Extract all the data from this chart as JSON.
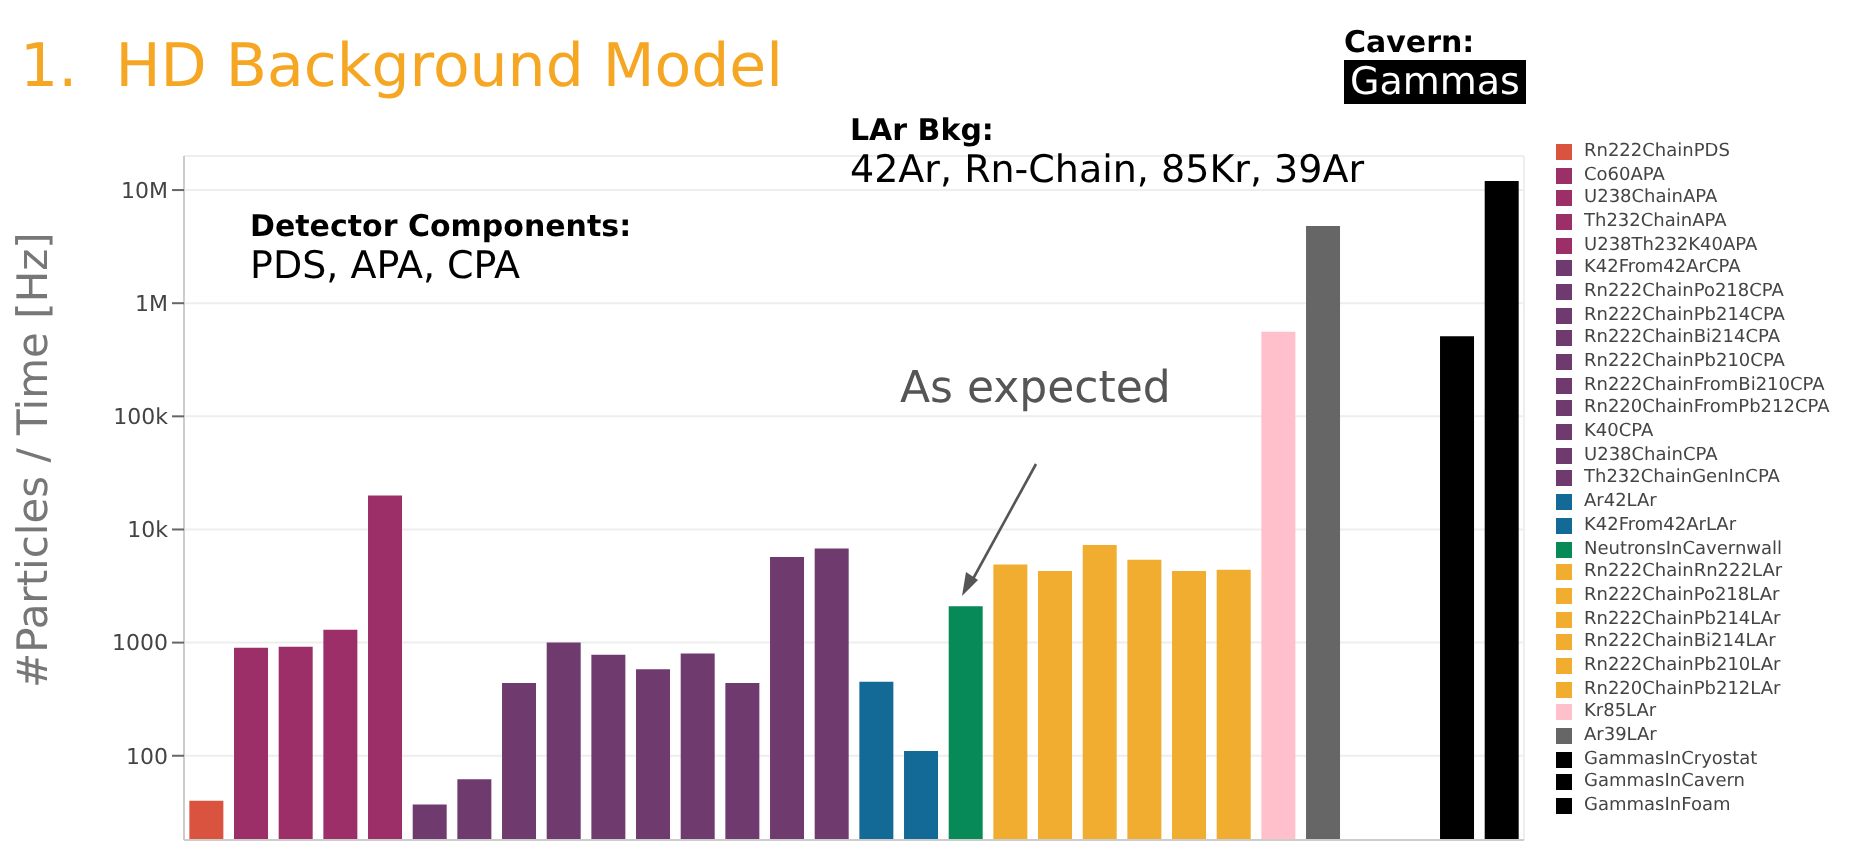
{
  "chart_data": {
    "type": "bar",
    "title": "1.  HD Background Model",
    "ylabel": "#Particles / Time [Hz]",
    "categories": [
      null,
      null,
      null,
      null,
      null,
      null,
      null,
      null,
      null,
      null,
      null,
      null,
      null,
      null,
      null,
      null,
      null,
      null,
      null,
      null,
      null,
      null,
      null,
      null,
      null,
      null,
      null,
      null,
      null,
      null
    ],
    "log": "y",
    "ylim": [
      18,
      20000000
    ],
    "yticks": [
      100,
      1000,
      {
        "value": 10000,
        "label": "10k"
      },
      {
        "value": 100000,
        "label": "100k"
      },
      {
        "value": 1000000,
        "label": "1M"
      },
      {
        "value": 10000000,
        "label": "10M"
      }
    ],
    "grid": true,
    "legend": "right",
    "annotations": [
      "Detector Components:",
      "PDS, APA, CPA",
      "LAr Bkg:",
      "42Ar, Rn-Chain, 85Kr, 39Ar",
      "Cavern:",
      "Gammas",
      "As expected"
    ],
    "series": [
      {
        "name": "Rn222ChainPDS",
        "color": "#d9533f",
        "values": [
          40,
          null,
          null,
          null,
          null,
          null,
          null,
          null,
          null,
          null,
          null,
          null,
          null,
          null,
          null,
          null,
          null,
          null,
          null,
          null,
          null,
          null,
          null,
          null,
          null,
          null,
          null,
          null,
          null,
          null
        ]
      },
      {
        "name": "Co60APA",
        "color": "#9c2f68",
        "values": [
          null,
          900,
          null,
          null,
          null,
          null,
          null,
          null,
          null,
          null,
          null,
          null,
          null,
          null,
          null,
          null,
          null,
          null,
          null,
          null,
          null,
          null,
          null,
          null,
          null,
          null,
          null,
          null,
          null,
          null
        ]
      },
      {
        "name": "U238ChainAPA",
        "color": "#9c2f68",
        "values": [
          null,
          null,
          920,
          null,
          null,
          null,
          null,
          null,
          null,
          null,
          null,
          null,
          null,
          null,
          null,
          null,
          null,
          null,
          null,
          null,
          null,
          null,
          null,
          null,
          null,
          null,
          null,
          null,
          null,
          null
        ]
      },
      {
        "name": "Th232ChainAPA",
        "color": "#9c2f68",
        "values": [
          null,
          null,
          null,
          1300,
          null,
          null,
          null,
          null,
          null,
          null,
          null,
          null,
          null,
          null,
          null,
          null,
          null,
          null,
          null,
          null,
          null,
          null,
          null,
          null,
          null,
          null,
          null,
          null,
          null,
          null
        ]
      },
      {
        "name": "U238Th232K40APA",
        "color": "#9c2f68",
        "values": [
          null,
          null,
          null,
          null,
          20000,
          null,
          null,
          null,
          null,
          null,
          null,
          null,
          null,
          null,
          null,
          null,
          null,
          null,
          null,
          null,
          null,
          null,
          null,
          null,
          null,
          null,
          null,
          null,
          null,
          null
        ]
      },
      {
        "name": "K42From42ArCPA",
        "color": "#6f3b6f",
        "values": [
          null,
          null,
          null,
          null,
          null,
          37,
          null,
          null,
          null,
          null,
          null,
          null,
          null,
          null,
          null,
          null,
          null,
          null,
          null,
          null,
          null,
          null,
          null,
          null,
          null,
          null,
          null,
          null,
          null,
          null
        ]
      },
      {
        "name": "Rn222ChainPo218CPA",
        "color": "#6f3b6f",
        "values": [
          null,
          null,
          null,
          null,
          null,
          null,
          62,
          null,
          null,
          null,
          null,
          null,
          null,
          null,
          null,
          null,
          null,
          null,
          null,
          null,
          null,
          null,
          null,
          null,
          null,
          null,
          null,
          null,
          null,
          null
        ]
      },
      {
        "name": "Rn222ChainPb214CPA",
        "color": "#6f3b6f",
        "values": [
          null,
          null,
          null,
          null,
          null,
          null,
          null,
          440,
          null,
          null,
          null,
          null,
          null,
          null,
          null,
          null,
          null,
          null,
          null,
          null,
          null,
          null,
          null,
          null,
          null,
          null,
          null,
          null,
          null,
          null
        ]
      },
      {
        "name": "Rn222ChainBi214CPA",
        "color": "#6f3b6f",
        "values": [
          null,
          null,
          null,
          null,
          null,
          null,
          null,
          null,
          1000,
          null,
          null,
          null,
          null,
          null,
          null,
          null,
          null,
          null,
          null,
          null,
          null,
          null,
          null,
          null,
          null,
          null,
          null,
          null,
          null,
          null
        ]
      },
      {
        "name": "Rn222ChainPb210CPA",
        "color": "#6f3b6f",
        "values": [
          null,
          null,
          null,
          null,
          null,
          null,
          null,
          null,
          null,
          780,
          null,
          null,
          null,
          null,
          null,
          null,
          null,
          null,
          null,
          null,
          null,
          null,
          null,
          null,
          null,
          null,
          null,
          null,
          null,
          null
        ]
      },
      {
        "name": "Rn222ChainFromBi210CPA",
        "color": "#6f3b6f",
        "values": [
          null,
          null,
          null,
          null,
          null,
          null,
          null,
          null,
          null,
          null,
          580,
          null,
          null,
          null,
          null,
          null,
          null,
          null,
          null,
          null,
          null,
          null,
          null,
          null,
          null,
          null,
          null,
          null,
          null,
          null
        ]
      },
      {
        "name": "Rn220ChainFromPb212CPA",
        "color": "#6f3b6f",
        "values": [
          null,
          null,
          null,
          null,
          null,
          null,
          null,
          null,
          null,
          null,
          null,
          800,
          null,
          null,
          null,
          null,
          null,
          null,
          null,
          null,
          null,
          null,
          null,
          null,
          null,
          null,
          null,
          null,
          null,
          null
        ]
      },
      {
        "name": "K40CPA",
        "color": "#6f3b6f",
        "values": [
          null,
          null,
          null,
          null,
          null,
          null,
          null,
          null,
          null,
          null,
          null,
          null,
          440,
          null,
          null,
          null,
          null,
          null,
          null,
          null,
          null,
          null,
          null,
          null,
          null,
          null,
          null,
          null,
          null,
          null
        ]
      },
      {
        "name": "U238ChainCPA",
        "color": "#6f3b6f",
        "values": [
          null,
          null,
          null,
          null,
          null,
          null,
          null,
          null,
          null,
          null,
          null,
          null,
          null,
          5700,
          null,
          null,
          null,
          null,
          null,
          null,
          null,
          null,
          null,
          null,
          null,
          null,
          null,
          null,
          null,
          null
        ]
      },
      {
        "name": "Th232ChainGenInCPA",
        "color": "#6f3b6f",
        "values": [
          null,
          null,
          null,
          null,
          null,
          null,
          null,
          null,
          null,
          null,
          null,
          null,
          null,
          null,
          6800,
          null,
          null,
          null,
          null,
          null,
          null,
          null,
          null,
          null,
          null,
          null,
          null,
          null,
          null,
          null
        ]
      },
      {
        "name": "Ar42LAr",
        "color": "#136a96",
        "values": [
          null,
          null,
          null,
          null,
          null,
          null,
          null,
          null,
          null,
          null,
          null,
          null,
          null,
          null,
          null,
          450,
          null,
          null,
          null,
          null,
          null,
          null,
          null,
          null,
          null,
          null,
          null,
          null,
          null,
          null
        ]
      },
      {
        "name": "K42From42ArLAr",
        "color": "#136a96",
        "values": [
          null,
          null,
          null,
          null,
          null,
          null,
          null,
          null,
          null,
          null,
          null,
          null,
          null,
          null,
          null,
          null,
          110,
          null,
          null,
          null,
          null,
          null,
          null,
          null,
          null,
          null,
          null,
          null,
          null,
          null
        ]
      },
      {
        "name": "NeutronsInCavernwall",
        "color": "#078a58",
        "values": [
          null,
          null,
          null,
          null,
          null,
          null,
          null,
          null,
          null,
          null,
          null,
          null,
          null,
          null,
          null,
          null,
          null,
          2100,
          null,
          null,
          null,
          null,
          null,
          null,
          null,
          null,
          null,
          null,
          null,
          null
        ]
      },
      {
        "name": "Rn222ChainRn222LAr",
        "color": "#f0ad30",
        "values": [
          null,
          null,
          null,
          null,
          null,
          null,
          null,
          null,
          null,
          null,
          null,
          null,
          null,
          null,
          null,
          null,
          null,
          null,
          4900,
          null,
          null,
          null,
          null,
          null,
          null,
          null,
          null,
          null,
          null,
          null
        ]
      },
      {
        "name": "Rn222ChainPo218LAr",
        "color": "#f0ad30",
        "values": [
          null,
          null,
          null,
          null,
          null,
          null,
          null,
          null,
          null,
          null,
          null,
          null,
          null,
          null,
          null,
          null,
          null,
          null,
          null,
          4300,
          null,
          null,
          null,
          null,
          null,
          null,
          null,
          null,
          null,
          null
        ]
      },
      {
        "name": "Rn222ChainPb214LAr",
        "color": "#f0ad30",
        "values": [
          null,
          null,
          null,
          null,
          null,
          null,
          null,
          null,
          null,
          null,
          null,
          null,
          null,
          null,
          null,
          null,
          null,
          null,
          null,
          null,
          7300,
          null,
          null,
          null,
          null,
          null,
          null,
          null,
          null,
          null
        ]
      },
      {
        "name": "Rn222ChainBi214LAr",
        "color": "#f0ad30",
        "values": [
          null,
          null,
          null,
          null,
          null,
          null,
          null,
          null,
          null,
          null,
          null,
          null,
          null,
          null,
          null,
          null,
          null,
          null,
          null,
          null,
          null,
          5400,
          null,
          null,
          null,
          null,
          null,
          null,
          null,
          null
        ]
      },
      {
        "name": "Rn222ChainPb210LAr",
        "color": "#f0ad30",
        "values": [
          null,
          null,
          null,
          null,
          null,
          null,
          null,
          null,
          null,
          null,
          null,
          null,
          null,
          null,
          null,
          null,
          null,
          null,
          null,
          null,
          null,
          null,
          4300,
          null,
          null,
          null,
          null,
          null,
          null,
          null
        ]
      },
      {
        "name": "Rn220ChainPb212LAr",
        "color": "#f0ad30",
        "values": [
          null,
          null,
          null,
          null,
          null,
          null,
          null,
          null,
          null,
          null,
          null,
          null,
          null,
          null,
          null,
          null,
          null,
          null,
          null,
          null,
          null,
          null,
          null,
          4400,
          null,
          null,
          null,
          null,
          null,
          null
        ]
      },
      {
        "name": "Kr85LAr",
        "color": "#ffc0cb",
        "values": [
          null,
          null,
          null,
          null,
          null,
          null,
          null,
          null,
          null,
          null,
          null,
          null,
          null,
          null,
          null,
          null,
          null,
          null,
          null,
          null,
          null,
          null,
          null,
          null,
          560000,
          null,
          null,
          null,
          null,
          null
        ]
      },
      {
        "name": "Ar39LAr",
        "color": "#666666",
        "values": [
          null,
          null,
          null,
          null,
          null,
          null,
          null,
          null,
          null,
          null,
          null,
          null,
          null,
          null,
          null,
          null,
          null,
          null,
          null,
          null,
          null,
          null,
          null,
          null,
          null,
          4800000,
          null,
          null,
          null,
          null
        ]
      },
      {
        "name": "GammasInCryostat",
        "color": "#000000",
        "values": [
          null,
          null,
          null,
          null,
          null,
          null,
          null,
          null,
          null,
          null,
          null,
          null,
          null,
          null,
          null,
          null,
          null,
          null,
          null,
          null,
          null,
          null,
          null,
          null,
          null,
          null,
          null,
          null,
          null,
          null
        ]
      },
      {
        "name": "GammasInCavern",
        "color": "#000000",
        "values": [
          null,
          null,
          null,
          null,
          null,
          null,
          null,
          null,
          null,
          null,
          null,
          null,
          null,
          null,
          null,
          null,
          null,
          null,
          null,
          null,
          null,
          null,
          null,
          null,
          null,
          null,
          null,
          null,
          510000,
          null
        ]
      },
      {
        "name": "GammasInFoam",
        "color": "#000000",
        "values": [
          null,
          null,
          null,
          null,
          null,
          null,
          null,
          null,
          null,
          null,
          null,
          null,
          null,
          null,
          null,
          null,
          null,
          null,
          null,
          null,
          null,
          null,
          null,
          null,
          null,
          null,
          null,
          null,
          null,
          12000000
        ]
      }
    ]
  }
}
